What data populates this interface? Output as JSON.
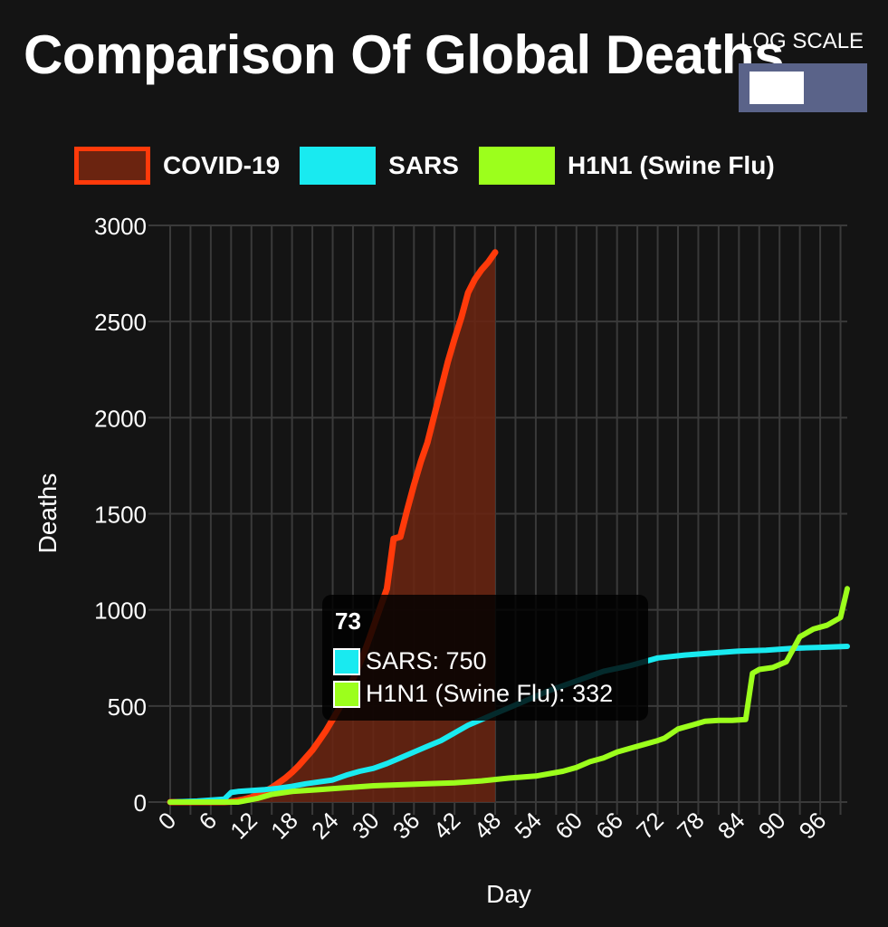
{
  "title": "Comparison Of Global Deaths",
  "log_scale": {
    "label": "LOG SCALE",
    "enabled": false
  },
  "colors": {
    "covid_line": "#ff3a0a",
    "covid_fill": "#6b2410",
    "sars": "#19eaf0",
    "h1n1": "#9cff1c",
    "grid": "#3a3a3a",
    "axis_text": "#ffffff"
  },
  "legend": [
    {
      "key": "covid",
      "label": "COVID-19"
    },
    {
      "key": "sars",
      "label": "SARS"
    },
    {
      "key": "h1n1",
      "label": "H1N1 (Swine Flu)"
    }
  ],
  "tooltip": {
    "title": "73",
    "rows": [
      {
        "key": "sars",
        "label": "SARS: 750"
      },
      {
        "key": "h1n1",
        "label": "H1N1 (Swine Flu): 332"
      }
    ]
  },
  "chart_data": {
    "type": "line",
    "title": "Comparison Of Global Deaths",
    "xlabel": "Day",
    "ylabel": "Deaths",
    "xlim": [
      0,
      100
    ],
    "ylim": [
      0,
      3000
    ],
    "x_ticks": [
      0,
      6,
      12,
      18,
      24,
      30,
      36,
      42,
      48,
      54,
      60,
      66,
      72,
      78,
      84,
      90,
      96
    ],
    "y_ticks": [
      0,
      500,
      1000,
      1500,
      2000,
      2500,
      3000
    ],
    "grid": true,
    "legend_position": "top",
    "series": [
      {
        "name": "COVID-19",
        "key": "covid",
        "area": true,
        "x": [
          0,
          2,
          4,
          6,
          8,
          9,
          10,
          11,
          12,
          13,
          14,
          15,
          16,
          17,
          18,
          19,
          20,
          21,
          22,
          23,
          24,
          25,
          26,
          27,
          28,
          29,
          30,
          31,
          32,
          33,
          34,
          35,
          36,
          37,
          38,
          39,
          40,
          41,
          42,
          43,
          44,
          45,
          46,
          47,
          48
        ],
        "y": [
          0,
          0,
          0,
          0,
          0,
          2,
          8,
          15,
          25,
          40,
          55,
          75,
          100,
          125,
          155,
          190,
          230,
          270,
          320,
          370,
          430,
          490,
          560,
          640,
          720,
          810,
          910,
          1010,
          1110,
          1370,
          1380,
          1520,
          1650,
          1770,
          1870,
          2010,
          2150,
          2290,
          2410,
          2520,
          2650,
          2720,
          2770,
          2810,
          2860
        ]
      },
      {
        "name": "SARS",
        "key": "sars",
        "x": [
          0,
          4,
          8,
          9,
          10,
          12,
          14,
          16,
          18,
          20,
          22,
          24,
          26,
          28,
          30,
          32,
          34,
          36,
          38,
          40,
          42,
          44,
          46,
          48,
          52,
          56,
          60,
          64,
          68,
          72,
          76,
          80,
          84,
          88,
          92,
          96,
          100
        ],
        "y": [
          0,
          5,
          15,
          50,
          55,
          60,
          65,
          72,
          82,
          95,
          105,
          115,
          140,
          160,
          175,
          200,
          230,
          260,
          290,
          320,
          360,
          400,
          430,
          460,
          520,
          580,
          630,
          680,
          710,
          750,
          765,
          775,
          785,
          790,
          800,
          805,
          810
        ]
      },
      {
        "name": "H1N1 (Swine Flu)",
        "key": "h1n1",
        "x": [
          0,
          10,
          13,
          15,
          18,
          22,
          26,
          30,
          34,
          38,
          42,
          46,
          50,
          54,
          58,
          60,
          62,
          64,
          66,
          68,
          70,
          72,
          73,
          75,
          77,
          79,
          81,
          83,
          85,
          86,
          87,
          89,
          91,
          93,
          95,
          97,
          99,
          100
        ],
        "y": [
          0,
          0,
          20,
          40,
          55,
          65,
          75,
          85,
          90,
          95,
          100,
          110,
          125,
          135,
          160,
          180,
          210,
          230,
          260,
          280,
          300,
          320,
          332,
          380,
          400,
          420,
          425,
          425,
          430,
          670,
          690,
          700,
          730,
          860,
          900,
          920,
          960,
          1110
        ]
      }
    ]
  }
}
